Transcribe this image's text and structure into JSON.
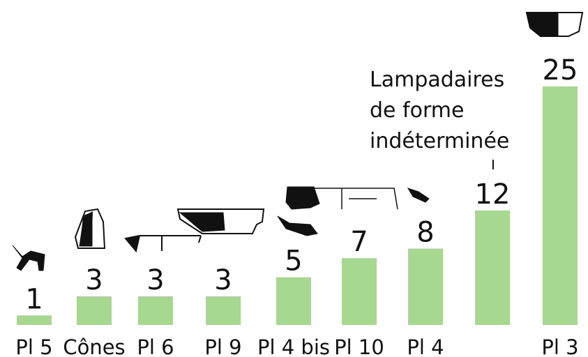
{
  "chart_data": {
    "type": "bar",
    "categories": [
      "Pl 5",
      "Cônes",
      "Pl 6",
      "Pl 9",
      "Pl 4 bis",
      "Pl 10",
      "Pl 4",
      null,
      "Pl 3"
    ],
    "values": [
      1,
      3,
      3,
      3,
      5,
      7,
      8,
      12,
      25
    ],
    "color": "#a6d88f",
    "annotation": [
      "Lampadaires",
      "de forme",
      "indéterminée"
    ]
  }
}
